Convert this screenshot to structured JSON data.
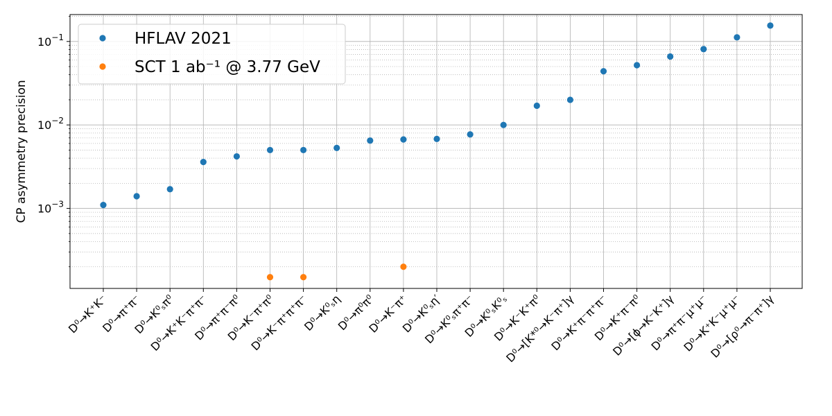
{
  "chart_data": {
    "type": "scatter",
    "title": "",
    "xlabel": "",
    "ylabel": "CP asymmetry precision",
    "yscale": "log",
    "ylim": [
      0.00011,
      0.21
    ],
    "grid": true,
    "legend_position": "top-left",
    "y_ticks": [
      {
        "value": 0.001,
        "mant": "10",
        "exp": "−3"
      },
      {
        "value": 0.01,
        "mant": "10",
        "exp": "−2"
      },
      {
        "value": 0.1,
        "mant": "10",
        "exp": "−1"
      }
    ],
    "categories": [
      "D⁰→K⁺K⁻",
      "D⁰→π⁺π⁻",
      "D⁰→K⁰ₛπ⁰",
      "D⁰→K⁺K⁻π⁺π⁻",
      "D⁰→π⁺π⁻π⁰",
      "D⁰→K⁻π⁺π⁰",
      "D⁰→K⁻π⁺π⁺π⁻",
      "D⁰→K⁰ₛη",
      "D⁰→π⁰π⁰",
      "D⁰→K⁻π⁺",
      "D⁰→K⁰ₛη′",
      "D⁰→K⁰ₛπ⁺π⁻",
      "D⁰→K⁰ₛK⁰ₛ",
      "D⁰→K⁻K⁺π⁰",
      "D⁰→[K*⁰→K⁻π⁺]γ",
      "D⁰→K⁺π⁻π⁺π⁻",
      "D⁰→K⁺π⁻π⁰",
      "D⁰→[ϕ→K⁻K⁺]γ",
      "D⁰→π⁺π⁻μ⁺μ⁻",
      "D⁰→K⁺K⁻μ⁺μ⁻",
      "D⁰→[ρ⁰→π⁻π⁺]γ"
    ],
    "series": [
      {
        "name": "HFLAV 2021",
        "color": "#1f77b4",
        "points": [
          {
            "x": 0,
            "y": 0.0011
          },
          {
            "x": 1,
            "y": 0.0014
          },
          {
            "x": 2,
            "y": 0.0017
          },
          {
            "x": 3,
            "y": 0.0036
          },
          {
            "x": 4,
            "y": 0.0042
          },
          {
            "x": 5,
            "y": 0.005
          },
          {
            "x": 6,
            "y": 0.005
          },
          {
            "x": 7,
            "y": 0.0053
          },
          {
            "x": 8,
            "y": 0.0065
          },
          {
            "x": 9,
            "y": 0.0067
          },
          {
            "x": 10,
            "y": 0.0068
          },
          {
            "x": 11,
            "y": 0.0077
          },
          {
            "x": 12,
            "y": 0.01
          },
          {
            "x": 13,
            "y": 0.017
          },
          {
            "x": 14,
            "y": 0.02
          },
          {
            "x": 15,
            "y": 0.044
          },
          {
            "x": 16,
            "y": 0.052
          },
          {
            "x": 17,
            "y": 0.066
          },
          {
            "x": 18,
            "y": 0.081
          },
          {
            "x": 19,
            "y": 0.112
          },
          {
            "x": 20,
            "y": 0.155
          }
        ]
      },
      {
        "name": "SCT 1 ab⁻¹ @ 3.77 GeV",
        "color": "#ff7f0e",
        "points": [
          {
            "x": 5,
            "y": 0.00015
          },
          {
            "x": 6,
            "y": 0.00015
          },
          {
            "x": 9,
            "y": 0.0002
          }
        ]
      }
    ]
  }
}
